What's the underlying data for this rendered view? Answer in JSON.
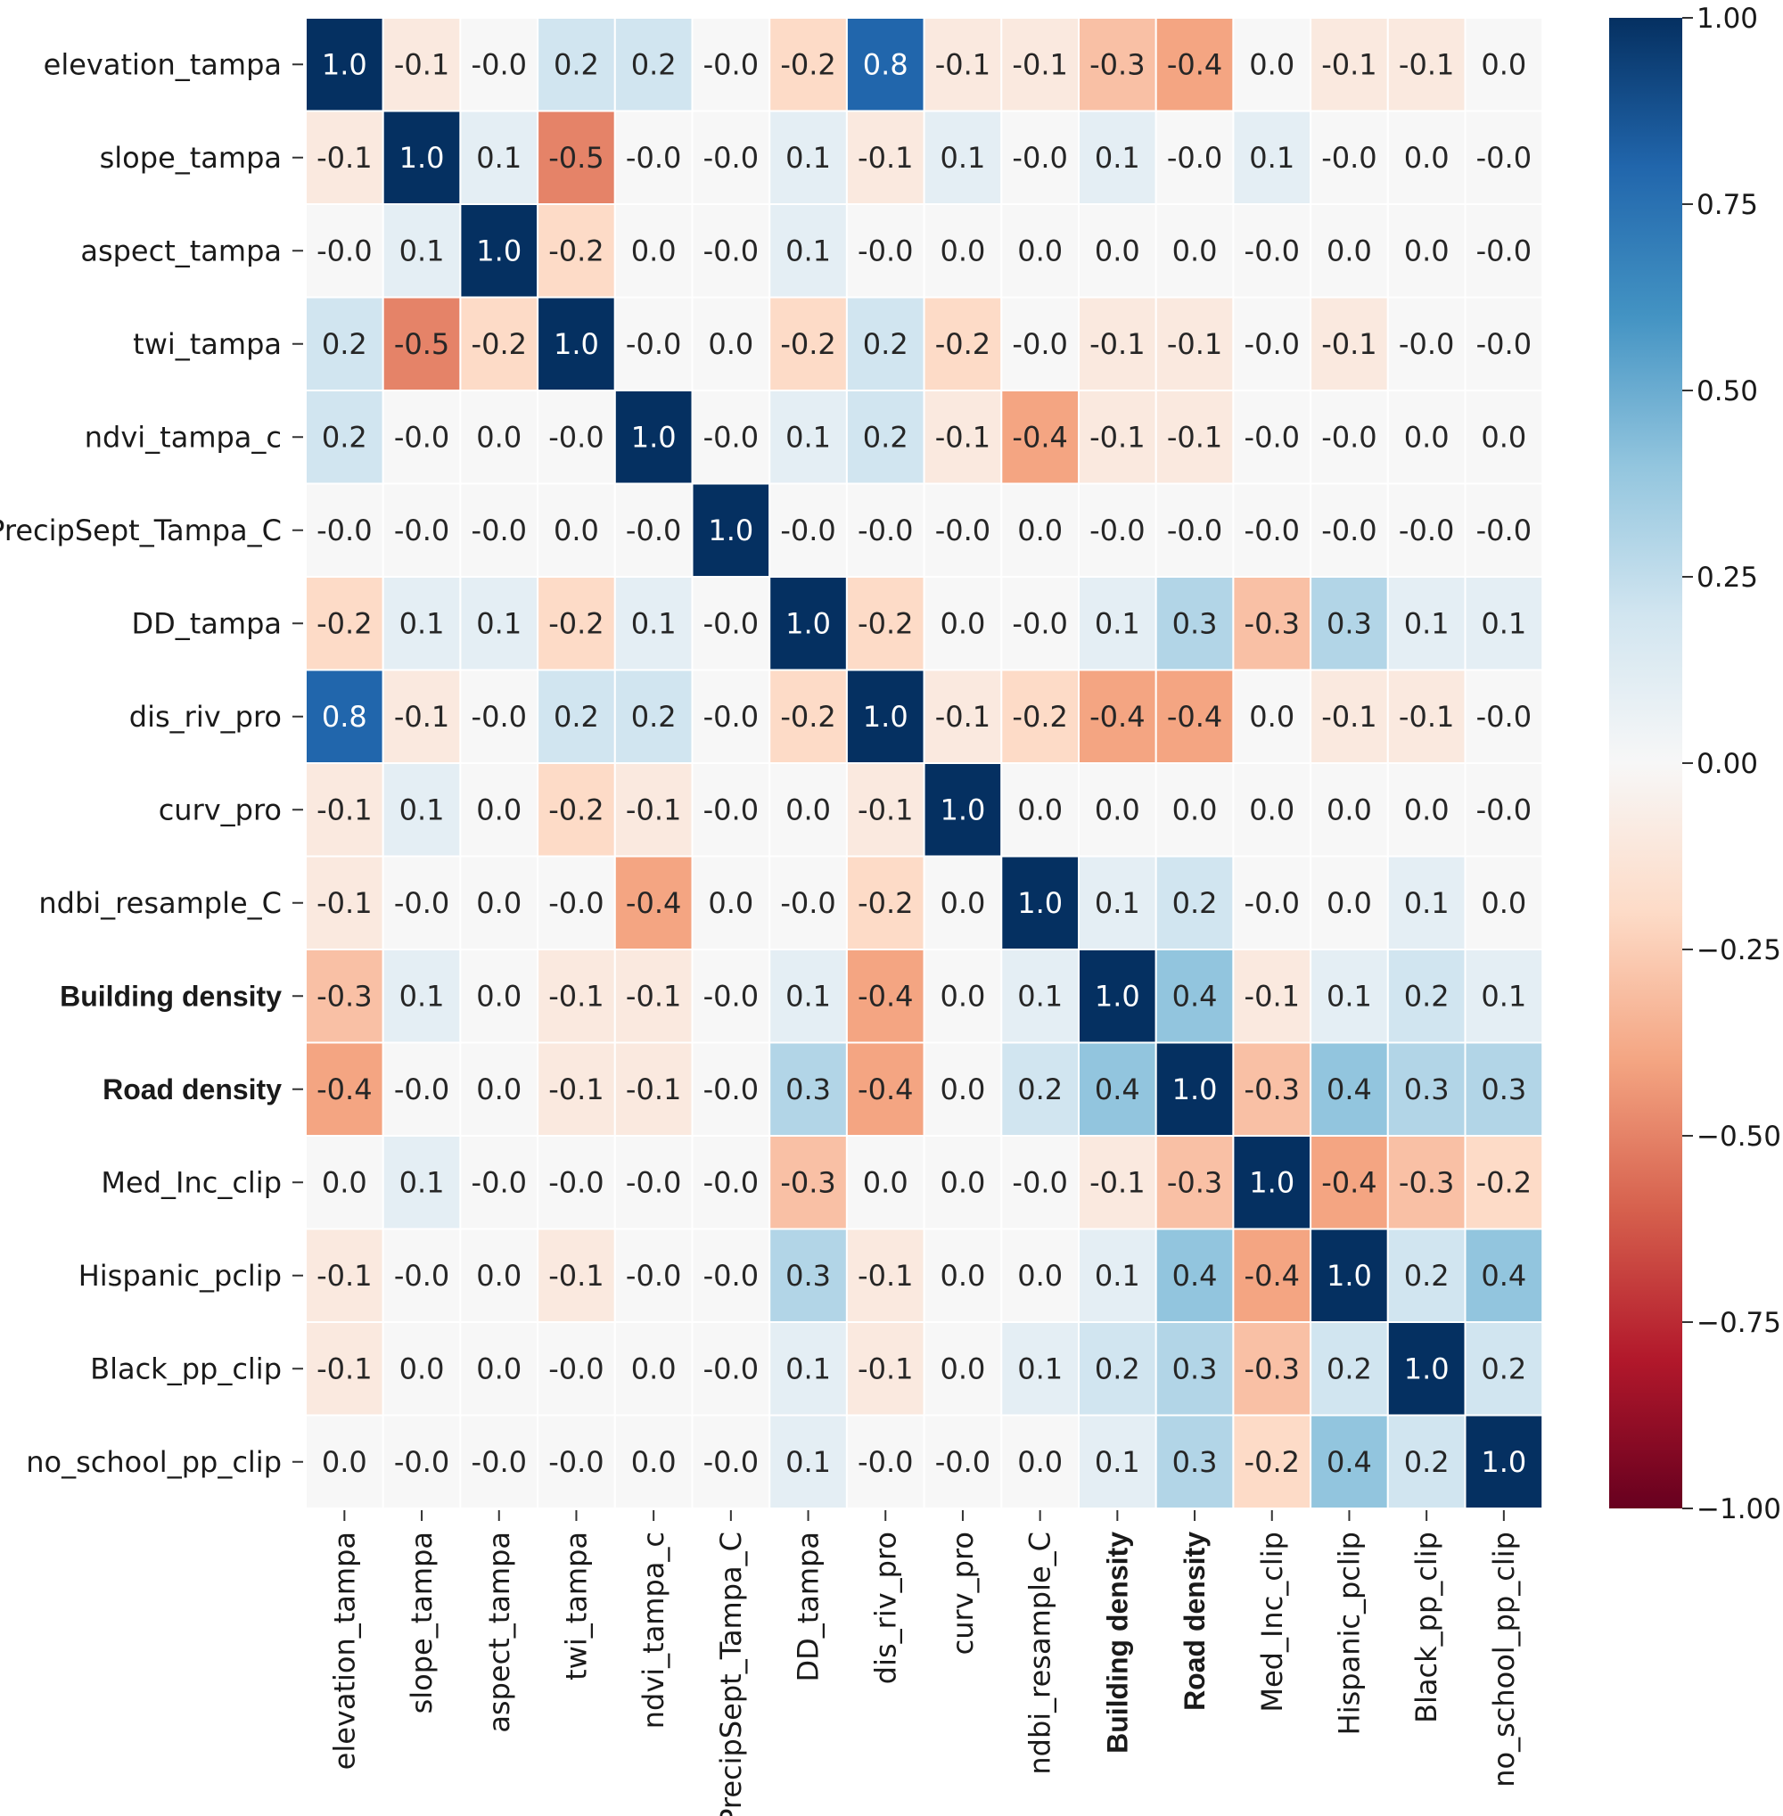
{
  "chart_data": {
    "type": "heatmap",
    "title": "",
    "row_labels": [
      "elevation_tampa",
      "slope_tampa",
      "aspect_tampa",
      "twi_tampa",
      "ndvi_tampa_c",
      "PrecipSept_Tampa_C",
      "DD_tampa",
      "dis_riv_pro",
      "curv_pro",
      "ndbi_resample_C",
      "Building density",
      "Road density",
      "Med_Inc_clip",
      "Hispanic_pclip",
      "Black_pp_clip",
      "no_school_pp_clip"
    ],
    "col_labels": [
      "elevation_tampa",
      "slope_tampa",
      "aspect_tampa",
      "twi_tampa",
      "ndvi_tampa_c",
      "PrecipSept_Tampa_C",
      "DD_tampa",
      "dis_riv_pro",
      "curv_pro",
      "ndbi_resample_C",
      "Building density",
      "Road density",
      "Med_Inc_clip",
      "Hispanic_pclip",
      "Black_pp_clip",
      "no_school_pp_clip"
    ],
    "bold_labels": [
      "Building density",
      "Road density"
    ],
    "values": [
      [
        1.0,
        -0.1,
        -0.0,
        0.2,
        0.2,
        -0.0,
        -0.2,
        0.8,
        -0.1,
        -0.1,
        -0.3,
        -0.4,
        0.0,
        -0.1,
        -0.1,
        0.0
      ],
      [
        -0.1,
        1.0,
        0.1,
        -0.5,
        -0.0,
        -0.0,
        0.1,
        -0.1,
        0.1,
        -0.0,
        0.1,
        -0.0,
        0.1,
        -0.0,
        0.0,
        -0.0
      ],
      [
        -0.0,
        0.1,
        1.0,
        -0.2,
        0.0,
        -0.0,
        0.1,
        -0.0,
        0.0,
        0.0,
        0.0,
        0.0,
        -0.0,
        0.0,
        0.0,
        -0.0
      ],
      [
        0.2,
        -0.5,
        -0.2,
        1.0,
        -0.0,
        0.0,
        -0.2,
        0.2,
        -0.2,
        -0.0,
        -0.1,
        -0.1,
        -0.0,
        -0.1,
        -0.0,
        -0.0
      ],
      [
        0.2,
        -0.0,
        0.0,
        -0.0,
        1.0,
        -0.0,
        0.1,
        0.2,
        -0.1,
        -0.4,
        -0.1,
        -0.1,
        -0.0,
        -0.0,
        0.0,
        0.0
      ],
      [
        -0.0,
        -0.0,
        -0.0,
        0.0,
        -0.0,
        1.0,
        -0.0,
        -0.0,
        -0.0,
        0.0,
        -0.0,
        -0.0,
        -0.0,
        -0.0,
        -0.0,
        -0.0
      ],
      [
        -0.2,
        0.1,
        0.1,
        -0.2,
        0.1,
        -0.0,
        1.0,
        -0.2,
        0.0,
        -0.0,
        0.1,
        0.3,
        -0.3,
        0.3,
        0.1,
        0.1
      ],
      [
        0.8,
        -0.1,
        -0.0,
        0.2,
        0.2,
        -0.0,
        -0.2,
        1.0,
        -0.1,
        -0.2,
        -0.4,
        -0.4,
        0.0,
        -0.1,
        -0.1,
        -0.0
      ],
      [
        -0.1,
        0.1,
        0.0,
        -0.2,
        -0.1,
        -0.0,
        0.0,
        -0.1,
        1.0,
        0.0,
        0.0,
        0.0,
        0.0,
        0.0,
        0.0,
        -0.0
      ],
      [
        -0.1,
        -0.0,
        0.0,
        -0.0,
        -0.4,
        0.0,
        -0.0,
        -0.2,
        0.0,
        1.0,
        0.1,
        0.2,
        -0.0,
        0.0,
        0.1,
        0.0
      ],
      [
        -0.3,
        0.1,
        0.0,
        -0.1,
        -0.1,
        -0.0,
        0.1,
        -0.4,
        0.0,
        0.1,
        1.0,
        0.4,
        -0.1,
        0.1,
        0.2,
        0.1
      ],
      [
        -0.4,
        -0.0,
        0.0,
        -0.1,
        -0.1,
        -0.0,
        0.3,
        -0.4,
        0.0,
        0.2,
        0.4,
        1.0,
        -0.3,
        0.4,
        0.3,
        0.3
      ],
      [
        0.0,
        0.1,
        -0.0,
        -0.0,
        -0.0,
        -0.0,
        -0.3,
        0.0,
        0.0,
        -0.0,
        -0.1,
        -0.3,
        1.0,
        -0.4,
        -0.3,
        -0.2
      ],
      [
        -0.1,
        -0.0,
        0.0,
        -0.1,
        -0.0,
        -0.0,
        0.3,
        -0.1,
        0.0,
        0.0,
        0.1,
        0.4,
        -0.4,
        1.0,
        0.2,
        0.4
      ],
      [
        -0.1,
        0.0,
        0.0,
        -0.0,
        0.0,
        -0.0,
        0.1,
        -0.1,
        0.0,
        0.1,
        0.2,
        0.3,
        -0.3,
        0.2,
        1.0,
        0.2
      ],
      [
        0.0,
        -0.0,
        -0.0,
        -0.0,
        0.0,
        -0.0,
        0.1,
        -0.0,
        -0.0,
        0.0,
        0.1,
        0.3,
        -0.2,
        0.4,
        0.2,
        1.0
      ]
    ],
    "colorbar": {
      "range": [
        -1.0,
        1.0
      ],
      "ticks": [
        1.0,
        0.75,
        0.5,
        0.25,
        0.0,
        -0.25,
        -0.5,
        -0.75,
        -1.0
      ],
      "tick_labels": [
        "1.00",
        "0.75",
        "0.50",
        "0.25",
        "0.00",
        "−0.25",
        "−0.50",
        "−0.75",
        "−1.00"
      ],
      "colormap": "RdBu"
    }
  }
}
